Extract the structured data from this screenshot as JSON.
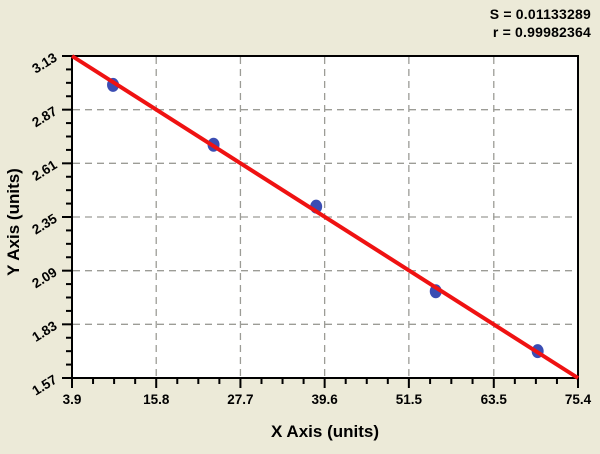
{
  "chart_data": {
    "type": "scatter",
    "title": "",
    "xlabel": "X Axis (units)",
    "ylabel": "Y Axis (units)",
    "xlim": [
      3.9,
      75.4
    ],
    "ylim": [
      1.57,
      3.13
    ],
    "x_ticks": [
      3.9,
      15.8,
      27.7,
      39.6,
      51.5,
      63.5,
      75.4
    ],
    "x_tick_labels": [
      "3.9",
      "15.8",
      "27.7",
      "39.6",
      "51.5",
      "63.5",
      "75.4"
    ],
    "y_ticks": [
      1.57,
      1.83,
      2.09,
      2.35,
      2.61,
      2.87,
      3.13
    ],
    "y_tick_labels": [
      "1.57",
      "1.83",
      "2.09",
      "2.35",
      "2.61",
      "2.87",
      "3.13"
    ],
    "minor_ticks_per_interval": 3,
    "grid": "dashed-at-major-ticks-interior-only",
    "legend": "none",
    "points": [
      {
        "x": 9.7,
        "y": 2.99
      },
      {
        "x": 23.9,
        "y": 2.7
      },
      {
        "x": 38.4,
        "y": 2.4
      },
      {
        "x": 55.3,
        "y": 1.99
      },
      {
        "x": 69.7,
        "y": 1.7
      }
    ],
    "fit_line": {
      "x1": 3.9,
      "y1": 3.13,
      "x2": 75.4,
      "y2": 1.57
    },
    "annotations": [
      "S = 0.01133289",
      "r = 0.99982364"
    ]
  },
  "colors": {
    "background": "#ECEAD8",
    "plot_background": "#FFFFFF",
    "axis": "#000000",
    "grid": "#9C9C96",
    "fit_line": "#EF1212",
    "point": "#3B4DB3",
    "text": "#000000"
  }
}
